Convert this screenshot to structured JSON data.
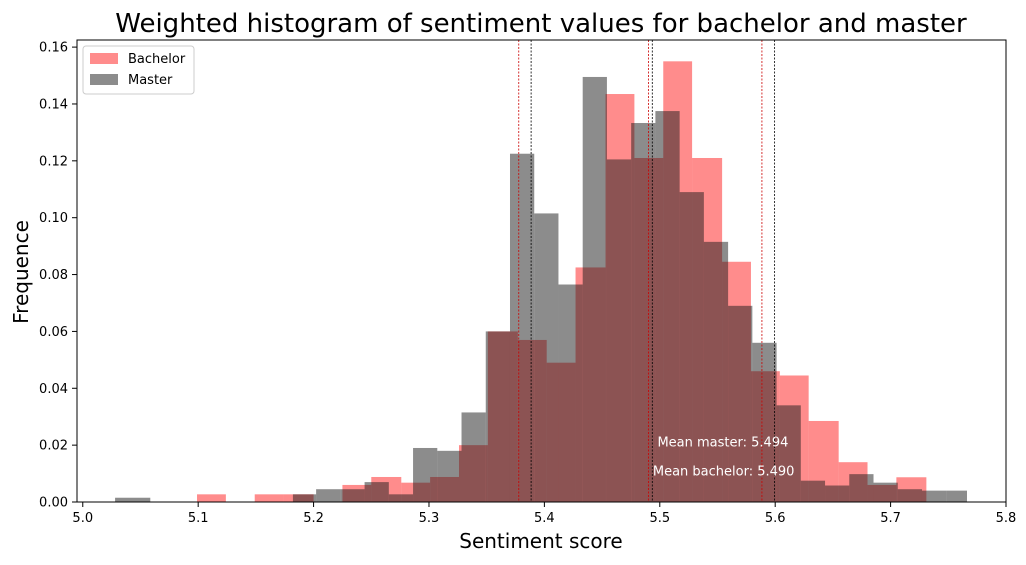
{
  "chart_data": {
    "type": "bar",
    "title": "Weighted histogram of sentiment values for bachelor and master",
    "xlabel": "Sentiment score",
    "ylabel": "Frequence",
    "xlim": [
      4.995,
      5.8
    ],
    "ylim": [
      0,
      0.1625
    ],
    "xticks": [
      5.0,
      5.1,
      5.2,
      5.3,
      5.4,
      5.5,
      5.6,
      5.7,
      5.8
    ],
    "xtick_labels": [
      "5.0",
      "5.1",
      "5.2",
      "5.3",
      "5.4",
      "5.5",
      "5.6",
      "5.7",
      "5.8"
    ],
    "yticks": [
      0.0,
      0.02,
      0.04,
      0.06,
      0.08,
      0.1,
      0.12,
      0.14,
      0.16
    ],
    "ytick_labels": [
      "0.00",
      "0.02",
      "0.04",
      "0.06",
      "0.08",
      "0.10",
      "0.12",
      "0.14",
      "0.16"
    ],
    "legend": {
      "position": "upper-left",
      "entries": [
        "Bachelor",
        "Master"
      ]
    },
    "series": [
      {
        "name": "Bachelor",
        "color": "#ff0000",
        "opacity": 0.45,
        "bin_edges": [
          5.099,
          5.124,
          5.149,
          5.174,
          5.2,
          5.225,
          5.25,
          5.276,
          5.301,
          5.326,
          5.351,
          5.377,
          5.402,
          5.427,
          5.453,
          5.478,
          5.503,
          5.528,
          5.554,
          5.579,
          5.604,
          5.629,
          5.655,
          5.68,
          5.705,
          5.731
        ],
        "values": [
          0.0027,
          0,
          0.0027,
          0.0027,
          0,
          0.006,
          0.0088,
          0.0068,
          0.0088,
          0.02,
          0.06,
          0.057,
          0.049,
          0.0825,
          0.1435,
          0.121,
          0.155,
          0.121,
          0.0845,
          0.046,
          0.0445,
          0.0285,
          0.014,
          0.006,
          0.0087
        ]
      },
      {
        "name": "Master",
        "color": "#1a1a1a",
        "opacity": 0.5,
        "bin_edges": [
          5.028,
          5.0585,
          5.0894,
          5.1203,
          5.1512,
          5.1821,
          5.2022,
          5.2232,
          5.2442,
          5.2652,
          5.2862,
          5.3072,
          5.3282,
          5.3492,
          5.3702,
          5.3912,
          5.4122,
          5.4332,
          5.4542,
          5.4752,
          5.4962,
          5.5172,
          5.5382,
          5.5592,
          5.5802,
          5.6012,
          5.6222,
          5.6432,
          5.6642,
          5.6852,
          5.7062,
          5.7272,
          5.7482,
          5.7662
        ],
        "values": [
          0.0015,
          0,
          0,
          0,
          0,
          0.0027,
          0.0045,
          0.0045,
          0.007,
          0.0027,
          0.019,
          0.018,
          0.0315,
          0.06,
          0.1225,
          0.1015,
          0.0765,
          0.1495,
          0.1205,
          0.1333,
          0.1375,
          0.109,
          0.0915,
          0.069,
          0.056,
          0.034,
          0.0075,
          0.0058,
          0.0098,
          0.0068,
          0.0045,
          0.004,
          0.004
        ]
      }
    ],
    "vlines": [
      {
        "x": 5.3778,
        "color": "#cc0000"
      },
      {
        "x": 5.3885,
        "color": "#000000"
      },
      {
        "x": 5.4903,
        "color": "#cc0000"
      },
      {
        "x": 5.4935,
        "color": "#000000"
      },
      {
        "x": 5.5885,
        "color": "#cc0000"
      },
      {
        "x": 5.5995,
        "color": "#000000"
      }
    ],
    "annotations": [
      {
        "text": "Mean master: 5.494",
        "x": 5.498,
        "y": 0.0195
      },
      {
        "text": "Mean bachelor: 5.490",
        "x": 5.494,
        "y": 0.0093
      }
    ]
  }
}
